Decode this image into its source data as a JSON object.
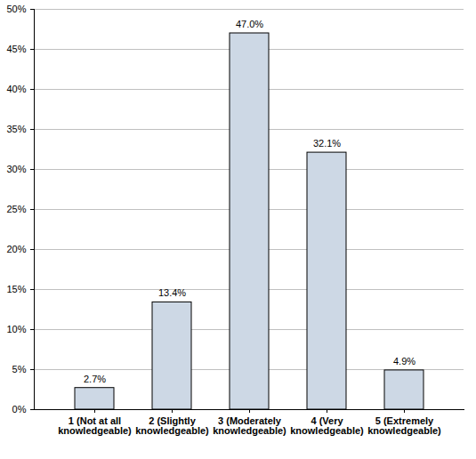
{
  "chart_data": {
    "type": "bar",
    "categories": [
      "1 (Not at all knowledgeable)",
      "2 (Slightly knowledgeable)",
      "3 (Moderately knowledgeable)",
      "4 (Very knowledgeable)",
      "5 (Extremely knowledgeable)"
    ],
    "values": [
      2.7,
      13.4,
      47.0,
      32.1,
      4.9
    ],
    "value_labels": [
      "2.7%",
      "13.4%",
      "47.0%",
      "32.1%",
      "4.9%"
    ],
    "color": "#cdd8e5",
    "ylim": [
      0,
      50
    ],
    "yticks": [
      {
        "value": 0,
        "label": "0%"
      },
      {
        "value": 5,
        "label": "5%"
      },
      {
        "value": 10,
        "label": "10%"
      },
      {
        "value": 15,
        "label": "15%"
      },
      {
        "value": 20,
        "label": "20%"
      },
      {
        "value": 25,
        "label": "25%"
      },
      {
        "value": 30,
        "label": "30%"
      },
      {
        "value": 35,
        "label": "35%"
      },
      {
        "value": 40,
        "label": "40%"
      },
      {
        "value": 45,
        "label": "45%"
      },
      {
        "value": 50,
        "label": "50%"
      }
    ],
    "grid": true,
    "data_labels": true
  }
}
